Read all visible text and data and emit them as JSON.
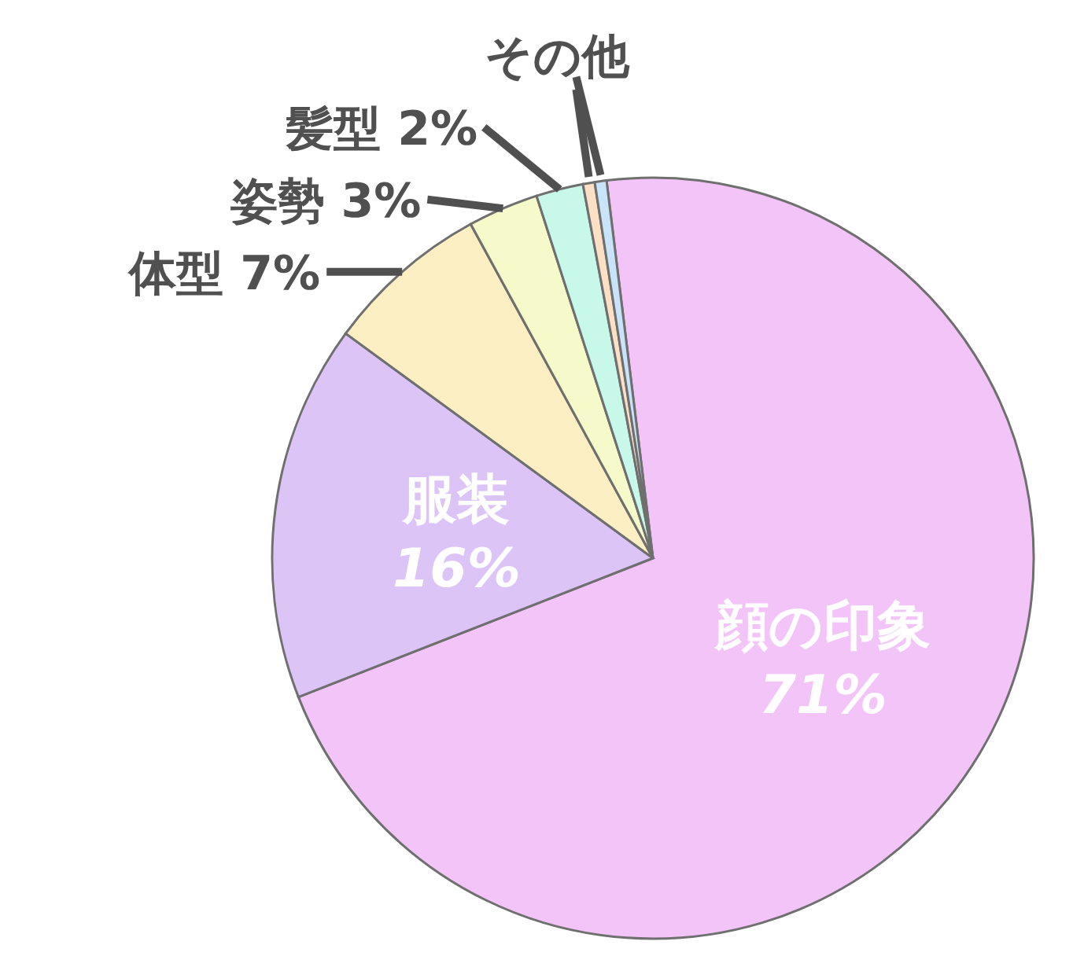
{
  "chart_data": {
    "type": "pie",
    "categories": [
      "顔の印象",
      "服装",
      "体型",
      "姿勢",
      "髪型",
      "その他",
      null
    ],
    "values": [
      71,
      16,
      7,
      3,
      2,
      0.5,
      0.5
    ],
    "value_labels": [
      "71%",
      "16%",
      "7%",
      "3%",
      "2%",
      null,
      null
    ],
    "colors": [
      "#f3c4f7",
      "#dcc4f6",
      "#fcefc4",
      "#f6f9c9",
      "#c8f8ea",
      "#fbe0c5",
      "#c9e3f9"
    ]
  }
}
